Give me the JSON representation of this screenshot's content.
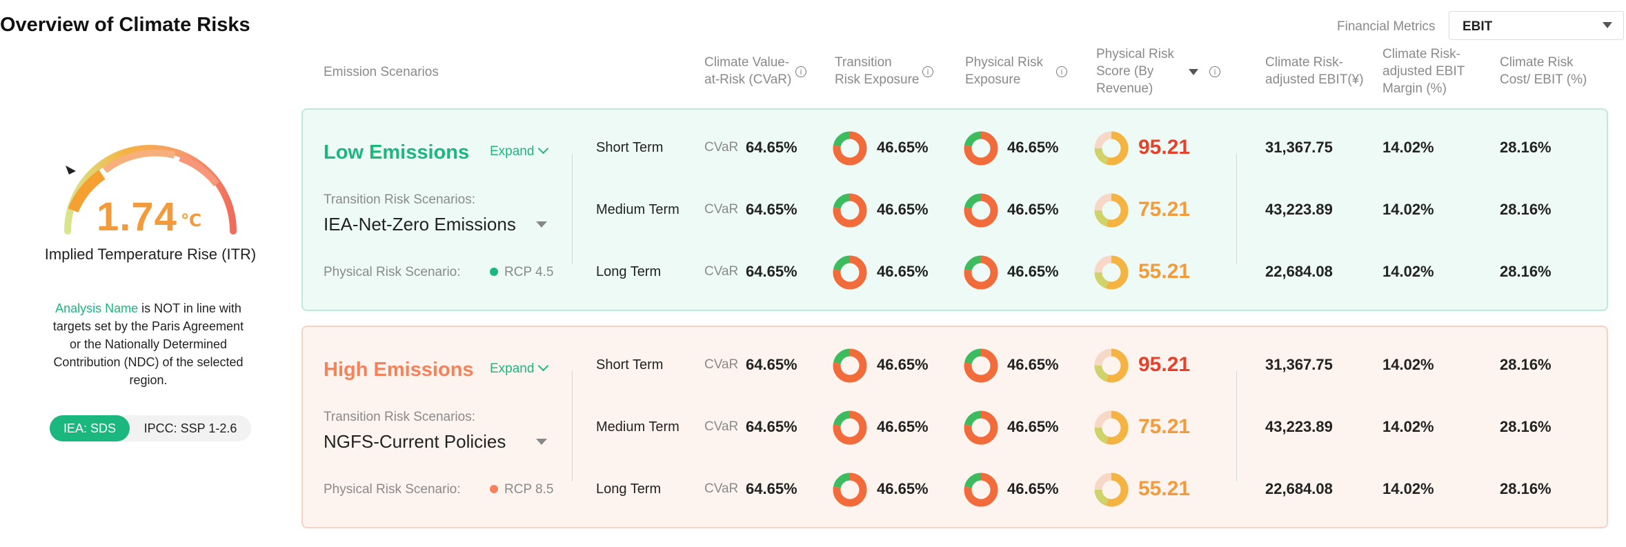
{
  "page": {
    "title": "Overview of Climate Risks"
  },
  "financial_metrics": {
    "label": "Financial Metrics",
    "selected": "EBIT"
  },
  "columns": {
    "emission_scenarios": "Emission Scenarios",
    "cvar_line1": "Climate Value-",
    "cvar_line2": "at-Risk (CVaR)",
    "transition_line1": "Transition",
    "transition_line2": "Risk Exposure",
    "physical_line1": "Physical Risk",
    "physical_line2": "Exposure",
    "score_line1": "Physical Risk",
    "score_line2": "Score (By",
    "score_line3": "Revenue)",
    "adj_ebit_line1": "Climate Risk-",
    "adj_ebit_line2": "adjusted EBIT(¥)",
    "margin_line1": "Climate Risk-",
    "margin_line2": "adjusted EBIT",
    "margin_line3": "Margin (%)",
    "cost_line1": "Climate Risk",
    "cost_line2": "Cost/ EBIT (%)"
  },
  "gauge": {
    "value": "1.74",
    "unit": "℃",
    "label": "Implied Temperature Rise (ITR)",
    "marker_level": 0.15
  },
  "note": {
    "highlight": "Analysis Name",
    "text_line1": " is NOT in line with",
    "text_line2": "targets set by the Paris Agreement",
    "text_line3": "or the Nationally Determined",
    "text_line4": "Contribution (NDC) of the selected",
    "text_line5": "region."
  },
  "toggle": {
    "active": "IEA: SDS",
    "inactive": "IPCC: SSP 1-2.6"
  },
  "colors": {
    "green": "#1ab77e",
    "orange": "#f5825a",
    "red_score": "#e8412a",
    "orange_score": "#f39a3a"
  },
  "scenarios": [
    {
      "title": "Low Emissions",
      "expand": "Expand",
      "transition_label": "Transition Risk Scenarios:",
      "transition_value": "IEA-Net-Zero Emissions",
      "physical_label": "Physical Risk Scenario:",
      "physical_value": "RCP 4.5",
      "rows": [
        {
          "term": "Short Term",
          "cvar_label": "CVaR",
          "cvar": "64.65%",
          "transition": "46.65%",
          "physical": "46.65%",
          "score": "95.21",
          "adj_ebit": "31,367.75",
          "margin": "14.02%",
          "cost": "28.16%"
        },
        {
          "term": "Medium Term",
          "cvar_label": "CVaR",
          "cvar": "64.65%",
          "transition": "46.65%",
          "physical": "46.65%",
          "score": "75.21",
          "adj_ebit": "43,223.89",
          "margin": "14.02%",
          "cost": "28.16%"
        },
        {
          "term": "Long Term",
          "cvar_label": "CVaR",
          "cvar": "64.65%",
          "transition": "46.65%",
          "physical": "46.65%",
          "score": "55.21",
          "adj_ebit": "22,684.08",
          "margin": "14.02%",
          "cost": "28.16%"
        }
      ]
    },
    {
      "title": "High Emissions",
      "expand": "Expand",
      "transition_label": "Transition Risk Scenarios:",
      "transition_value": "NGFS-Current Policies",
      "physical_label": "Physical Risk Scenario:",
      "physical_value": "RCP 8.5",
      "rows": [
        {
          "term": "Short Term",
          "cvar_label": "CVaR",
          "cvar": "64.65%",
          "transition": "46.65%",
          "physical": "46.65%",
          "score": "95.21",
          "adj_ebit": "31,367.75",
          "margin": "14.02%",
          "cost": "28.16%"
        },
        {
          "term": "Medium Term",
          "cvar_label": "CVaR",
          "cvar": "64.65%",
          "transition": "46.65%",
          "physical": "46.65%",
          "score": "75.21",
          "adj_ebit": "43,223.89",
          "margin": "14.02%",
          "cost": "28.16%"
        },
        {
          "term": "Long Term",
          "cvar_label": "CVaR",
          "cvar": "64.65%",
          "transition": "46.65%",
          "physical": "46.65%",
          "score": "55.21",
          "adj_ebit": "22,684.08",
          "margin": "14.02%",
          "cost": "28.16%"
        }
      ]
    }
  ]
}
